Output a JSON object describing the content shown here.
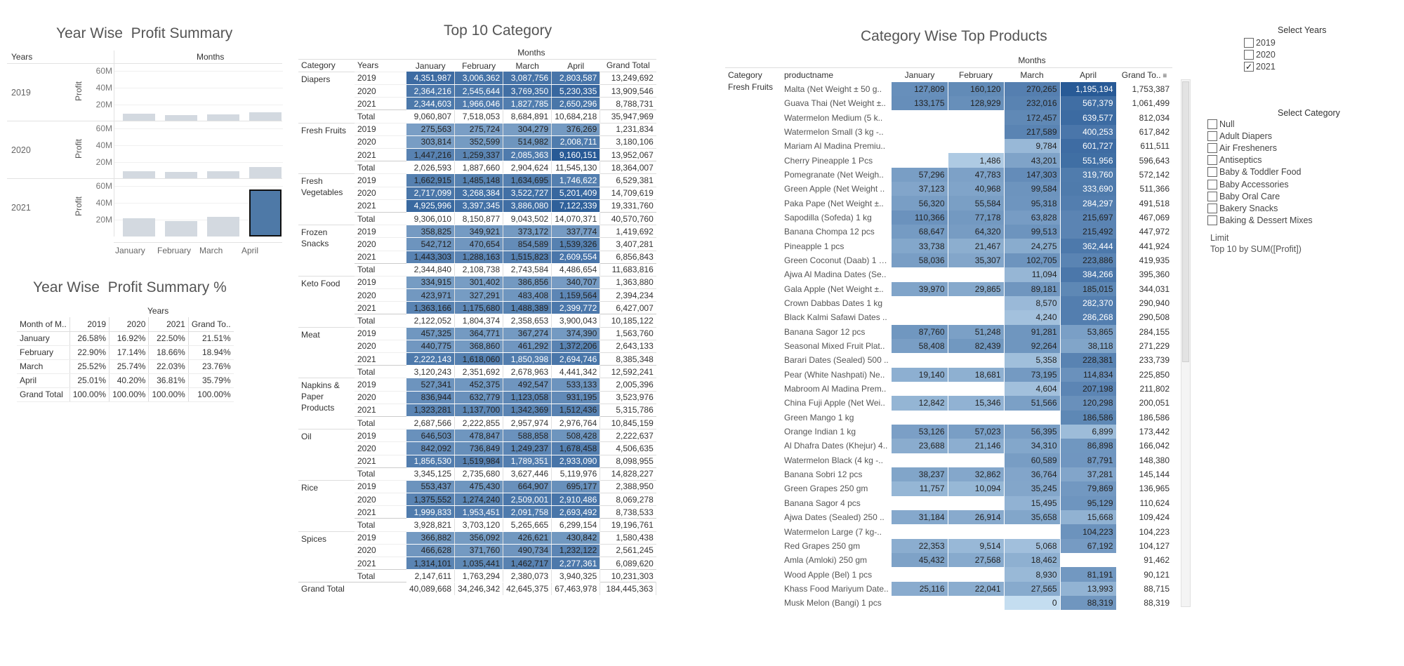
{
  "titles": {
    "year_wise": "Year Wise  Profit Summary",
    "year_wise_pct": "Year Wise  Profit Summary %",
    "top10": "Top 10 Category",
    "cat_products": "Category Wise Top Products"
  },
  "year_summary": {
    "col_years": "Years",
    "col_months": "Months",
    "y_label": "Profit",
    "ticks": [
      "60M",
      "40M",
      "20M"
    ],
    "months": [
      "January",
      "February",
      "March",
      "April"
    ],
    "rows": [
      {
        "year": "2019",
        "values": [
          9.0,
          7.5,
          8.7,
          10.7
        ]
      },
      {
        "year": "2020",
        "values": [
          9.3,
          8.2,
          9.0,
          14.1
        ]
      },
      {
        "year": "2021",
        "values": [
          21.7,
          18.6,
          23.6,
          55.6
        ]
      }
    ],
    "y_max": 68,
    "selected": {
      "row": 2,
      "col": 3
    }
  },
  "pct_table": {
    "col_years": "Years",
    "header": [
      "Month of M..",
      "2019",
      "2020",
      "2021",
      "Grand To.."
    ],
    "rows": [
      [
        "January",
        "26.58%",
        "16.92%",
        "22.50%",
        "21.51%"
      ],
      [
        "February",
        "22.90%",
        "17.14%",
        "18.66%",
        "18.94%"
      ],
      [
        "March",
        "25.52%",
        "25.74%",
        "22.03%",
        "23.76%"
      ],
      [
        "April",
        "25.01%",
        "40.20%",
        "36.81%",
        "35.79%"
      ],
      [
        "Grand Total",
        "100.00%",
        "100.00%",
        "100.00%",
        "100.00%"
      ]
    ]
  },
  "top10": {
    "months_label": "Months",
    "header": [
      "Category",
      "Years",
      "January",
      "February",
      "March",
      "April",
      "Grand Total"
    ],
    "groups": [
      {
        "category": "Diapers",
        "rows": [
          [
            "2019",
            "4,351,987",
            "3,006,362",
            "3,087,756",
            "2,803,587",
            "13,249,692"
          ],
          [
            "2020",
            "2,364,216",
            "2,545,644",
            "3,769,350",
            "5,230,335",
            "13,909,546"
          ],
          [
            "2021",
            "2,344,603",
            "1,966,046",
            "1,827,785",
            "2,650,296",
            "8,788,731"
          ],
          [
            "Total",
            "9,060,807",
            "7,518,053",
            "8,684,891",
            "10,684,218",
            "35,947,969"
          ]
        ]
      },
      {
        "category": "Fresh Fruits",
        "rows": [
          [
            "2019",
            "275,563",
            "275,724",
            "304,279",
            "376,269",
            "1,231,834"
          ],
          [
            "2020",
            "303,814",
            "352,599",
            "514,982",
            "2,008,711",
            "3,180,106"
          ],
          [
            "2021",
            "1,447,216",
            "1,259,337",
            "2,085,363",
            "9,160,151",
            "13,952,067"
          ],
          [
            "Total",
            "2,026,593",
            "1,887,660",
            "2,904,624",
            "11,545,130",
            "18,364,007"
          ]
        ]
      },
      {
        "category": "Fresh Vegetables",
        "rows": [
          [
            "2019",
            "1,662,915",
            "1,485,148",
            "1,634,695",
            "1,746,622",
            "6,529,381"
          ],
          [
            "2020",
            "2,717,099",
            "3,268,384",
            "3,522,727",
            "5,201,409",
            "14,709,619"
          ],
          [
            "2021",
            "4,925,996",
            "3,397,345",
            "3,886,080",
            "7,122,339",
            "19,331,760"
          ],
          [
            "Total",
            "9,306,010",
            "8,150,877",
            "9,043,502",
            "14,070,371",
            "40,570,760"
          ]
        ]
      },
      {
        "category": "Frozen Snacks",
        "rows": [
          [
            "2019",
            "358,825",
            "349,921",
            "373,172",
            "337,774",
            "1,419,692"
          ],
          [
            "2020",
            "542,712",
            "470,654",
            "854,589",
            "1,539,326",
            "3,407,281"
          ],
          [
            "2021",
            "1,443,303",
            "1,288,163",
            "1,515,823",
            "2,609,554",
            "6,856,843"
          ],
          [
            "Total",
            "2,344,840",
            "2,108,738",
            "2,743,584",
            "4,486,654",
            "11,683,816"
          ]
        ]
      },
      {
        "category": "Keto Food",
        "rows": [
          [
            "2019",
            "334,915",
            "301,402",
            "386,856",
            "340,707",
            "1,363,880"
          ],
          [
            "2020",
            "423,971",
            "327,291",
            "483,408",
            "1,159,564",
            "2,394,234"
          ],
          [
            "2021",
            "1,363,166",
            "1,175,680",
            "1,488,389",
            "2,399,772",
            "6,427,007"
          ],
          [
            "Total",
            "2,122,052",
            "1,804,374",
            "2,358,653",
            "3,900,043",
            "10,185,122"
          ]
        ]
      },
      {
        "category": "Meat",
        "rows": [
          [
            "2019",
            "457,325",
            "364,771",
            "367,274",
            "374,390",
            "1,563,760"
          ],
          [
            "2020",
            "440,775",
            "368,860",
            "461,292",
            "1,372,206",
            "2,643,133"
          ],
          [
            "2021",
            "2,222,143",
            "1,618,060",
            "1,850,398",
            "2,694,746",
            "8,385,348"
          ],
          [
            "Total",
            "3,120,243",
            "2,351,692",
            "2,678,963",
            "4,441,342",
            "12,592,241"
          ]
        ]
      },
      {
        "category": "Napkins & Paper Products",
        "rows": [
          [
            "2019",
            "527,341",
            "452,375",
            "492,547",
            "533,133",
            "2,005,396"
          ],
          [
            "2020",
            "836,944",
            "632,779",
            "1,123,058",
            "931,195",
            "3,523,976"
          ],
          [
            "2021",
            "1,323,281",
            "1,137,700",
            "1,342,369",
            "1,512,436",
            "5,315,786"
          ],
          [
            "Total",
            "2,687,566",
            "2,222,855",
            "2,957,974",
            "2,976,764",
            "10,845,159"
          ]
        ]
      },
      {
        "category": "Oil",
        "rows": [
          [
            "2019",
            "646,503",
            "478,847",
            "588,858",
            "508,428",
            "2,222,637"
          ],
          [
            "2020",
            "842,092",
            "736,849",
            "1,249,237",
            "1,678,458",
            "4,506,635"
          ],
          [
            "2021",
            "1,856,530",
            "1,519,984",
            "1,789,351",
            "2,933,090",
            "8,098,955"
          ],
          [
            "Total",
            "3,345,125",
            "2,735,680",
            "3,627,446",
            "5,119,976",
            "14,828,227"
          ]
        ]
      },
      {
        "category": "Rice",
        "rows": [
          [
            "2019",
            "553,437",
            "475,430",
            "664,907",
            "695,177",
            "2,388,950"
          ],
          [
            "2020",
            "1,375,552",
            "1,274,240",
            "2,509,001",
            "2,910,486",
            "8,069,278"
          ],
          [
            "2021",
            "1,999,833",
            "1,953,451",
            "2,091,758",
            "2,693,492",
            "8,738,533"
          ],
          [
            "Total",
            "3,928,821",
            "3,703,120",
            "5,265,665",
            "6,299,154",
            "19,196,761"
          ]
        ]
      },
      {
        "category": "Spices",
        "rows": [
          [
            "2019",
            "366,882",
            "356,092",
            "426,621",
            "430,842",
            "1,580,438"
          ],
          [
            "2020",
            "466,628",
            "371,760",
            "490,734",
            "1,232,122",
            "2,561,245"
          ],
          [
            "2021",
            "1,314,101",
            "1,035,441",
            "1,462,717",
            "2,277,361",
            "6,089,620"
          ],
          [
            "Total",
            "2,147,611",
            "1,763,294",
            "2,380,073",
            "3,940,325",
            "10,231,303"
          ]
        ]
      }
    ],
    "grand_total": [
      "Grand Total",
      "40,089,668",
      "34,246,342",
      "42,645,375",
      "67,463,978",
      "184,445,363"
    ]
  },
  "products": {
    "months_label": "Months",
    "header": [
      "Category",
      "productname",
      "January",
      "February",
      "March",
      "April",
      "Grand To.."
    ],
    "category": "Fresh Fruits",
    "rows": [
      [
        "Malta (Net Weight ± 50 g..",
        "127,809",
        "160,120",
        "270,265",
        "1,195,194",
        "1,753,387"
      ],
      [
        "Guava Thai (Net Weight ±..",
        "133,175",
        "128,929",
        "232,016",
        "567,379",
        "1,061,499"
      ],
      [
        "Watermelon Medium (5 k..",
        "",
        "",
        "172,457",
        "639,577",
        "812,034"
      ],
      [
        "Watermelon Small (3 kg -..",
        "",
        "",
        "217,589",
        "400,253",
        "617,842"
      ],
      [
        "Mariam Al Madina Premiu..",
        "",
        "",
        "9,784",
        "601,727",
        "611,511"
      ],
      [
        "Cherry Pineapple  1 Pcs",
        "",
        "1,486",
        "43,201",
        "551,956",
        "596,643"
      ],
      [
        "Pomegranate (Net Weigh..",
        "57,296",
        "47,783",
        "147,303",
        "319,760",
        "572,142"
      ],
      [
        "Green Apple (Net Weight ..",
        "37,123",
        "40,968",
        "99,584",
        "333,690",
        "511,366"
      ],
      [
        "Paka Pape (Net Weight ±..",
        "56,320",
        "55,584",
        "95,318",
        "284,297",
        "491,518"
      ],
      [
        "Sapodilla (Sofeda) 1 kg",
        "110,366",
        "77,178",
        "63,828",
        "215,697",
        "467,069"
      ],
      [
        "Banana Chompa 12 pcs",
        "68,647",
        "64,320",
        "99,513",
        "215,492",
        "447,972"
      ],
      [
        "Pineapple  1 pcs",
        "33,738",
        "21,467",
        "24,275",
        "362,444",
        "441,924"
      ],
      [
        "Green Coconut (Daab) 1 pcs",
        "58,036",
        "35,307",
        "102,705",
        "223,886",
        "419,935"
      ],
      [
        "Ajwa Al Madina Dates (Se..",
        "",
        "",
        "11,094",
        "384,266",
        "395,360"
      ],
      [
        "Gala Apple (Net Weight ±..",
        "39,970",
        "29,865",
        "89,181",
        "185,015",
        "344,031"
      ],
      [
        "Crown Dabbas Dates 1 kg",
        "",
        "",
        "8,570",
        "282,370",
        "290,940"
      ],
      [
        "Black Kalmi Safawi Dates ..",
        "",
        "",
        "4,240",
        "286,268",
        "290,508"
      ],
      [
        "Banana Sagor 12 pcs",
        "87,760",
        "51,248",
        "91,281",
        "53,865",
        "284,155"
      ],
      [
        "Seasonal Mixed Fruit Plat..",
        "58,408",
        "82,439",
        "92,264",
        "38,118",
        "271,229"
      ],
      [
        "Barari Dates (Sealed) 500 ..",
        "",
        "",
        "5,358",
        "228,381",
        "233,739"
      ],
      [
        "Pear (White Nashpati) Ne..",
        "19,140",
        "18,681",
        "73,195",
        "114,834",
        "225,850"
      ],
      [
        "Mabroom Al Madina Prem..",
        "",
        "",
        "4,604",
        "207,198",
        "211,802"
      ],
      [
        "China Fuji Apple (Net Wei..",
        "12,842",
        "15,346",
        "51,566",
        "120,298",
        "200,051"
      ],
      [
        "Green Mango 1 kg",
        "",
        "",
        "",
        "186,586",
        "186,586"
      ],
      [
        "Orange Indian 1 kg",
        "53,126",
        "57,023",
        "56,395",
        "6,899",
        "173,442"
      ],
      [
        "Al Dhafra Dates (Khejur) 4..",
        "23,688",
        "21,146",
        "34,310",
        "86,898",
        "166,042"
      ],
      [
        "Watermelon Black (4 kg -..",
        "",
        "",
        "60,589",
        "87,791",
        "148,380"
      ],
      [
        "Banana Sobri 12 pcs",
        "38,237",
        "32,862",
        "36,764",
        "37,281",
        "145,144"
      ],
      [
        "Green Grapes  250 gm",
        "11,757",
        "10,094",
        "35,245",
        "79,869",
        "136,965"
      ],
      [
        "Banana Sagor 4 pcs",
        "",
        "",
        "15,495",
        "95,129",
        "110,624"
      ],
      [
        "Ajwa Dates (Sealed)  250 ..",
        "31,184",
        "26,914",
        "35,658",
        "15,668",
        "109,424"
      ],
      [
        "Watermelon Large (7 kg-..",
        "",
        "",
        "",
        "104,223",
        "104,223"
      ],
      [
        "Red Grapes 250 gm",
        "22,353",
        "9,514",
        "5,068",
        "67,192",
        "104,127"
      ],
      [
        "Amla (Amloki) 250 gm",
        "45,432",
        "27,568",
        "18,462",
        "",
        "91,462"
      ],
      [
        "Wood Apple (Bel) 1 pcs",
        "",
        "",
        "8,930",
        "81,191",
        "90,121"
      ],
      [
        "Khass Food Mariyum Date..",
        "25,116",
        "22,041",
        "27,565",
        "13,993",
        "88,715"
      ],
      [
        "Musk Melon (Bangi) 1 pcs",
        "",
        "",
        "0",
        "88,319",
        "88,319"
      ]
    ]
  },
  "filters": {
    "years_title": "Select Years",
    "years": [
      {
        "label": "2019",
        "checked": false
      },
      {
        "label": "2020",
        "checked": false
      },
      {
        "label": "2021",
        "checked": true
      }
    ],
    "category_title": "Select Category",
    "categories": [
      {
        "label": "Null",
        "checked": false
      },
      {
        "label": "Adult Diapers",
        "checked": false
      },
      {
        "label": "Air Fresheners",
        "checked": false
      },
      {
        "label": "Antiseptics",
        "checked": false
      },
      {
        "label": "Baby & Toddler Food",
        "checked": false
      },
      {
        "label": "Baby Accessories",
        "checked": false
      },
      {
        "label": "Baby Oral Care",
        "checked": false
      },
      {
        "label": "Bakery Snacks",
        "checked": false
      },
      {
        "label": "Baking & Dessert Mixes",
        "checked": false
      }
    ],
    "limit_label": "Limit",
    "limit_value": "Top 10 by SUM([Profit])"
  }
}
